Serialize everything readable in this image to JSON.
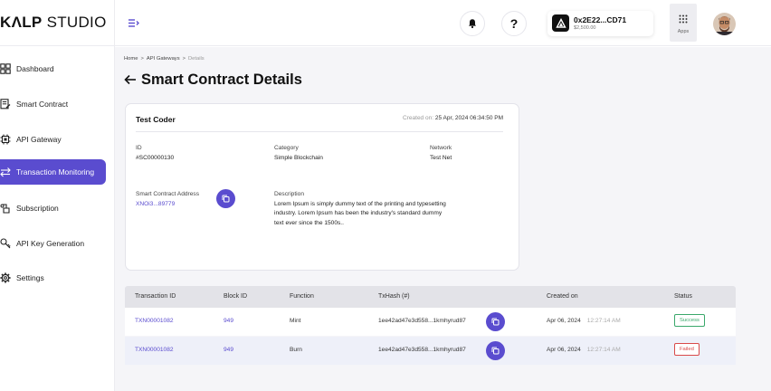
{
  "header": {
    "logo_bold": "KΛLP",
    "logo_light": " STUDIO",
    "wallet": {
      "address": "0x2E22...CD71",
      "balance": "$2,500.00"
    },
    "apps_label": "Apps",
    "help_label": "?"
  },
  "sidebar": {
    "items": [
      {
        "label": "Dashboard",
        "icon": "dashboard-icon",
        "active": false
      },
      {
        "label": "Smart Contract",
        "icon": "contract-icon",
        "active": false
      },
      {
        "label": "API Gateway",
        "icon": "chip-icon",
        "active": false
      },
      {
        "label": "Transaction Monitoring",
        "icon": "transfer-icon",
        "active": true
      },
      {
        "label": "Subscription",
        "icon": "subscription-icon",
        "active": false
      },
      {
        "label": "API Key Generation",
        "icon": "key-icon",
        "active": false
      },
      {
        "label": "Settings",
        "icon": "gear-icon",
        "active": false
      }
    ]
  },
  "breadcrumb": {
    "home": "Home",
    "sep1": ">",
    "parent": "API Gateways",
    "sep2": ">",
    "current": "Details"
  },
  "page_title": "Smart Contract Details",
  "details": {
    "title": "Test Coder",
    "created_label": "Created on:",
    "created_value": "25 Apr, 2024 06:34:50 PM",
    "id_label": "ID",
    "id_value": "#SC00000130",
    "category_label": "Category",
    "category_value": "Simple Blockchain",
    "network_label": "Network",
    "network_value": "Test Net",
    "address_label": "Smart Contract Address",
    "address_value": "XNOi3...89779",
    "description_label": "Description",
    "description_value": "Lorem Ipsum is simply dummy text of the printing and typesetting industry. Lorem Ipsum has been the industry's standard dummy text ever since the 1500s.."
  },
  "table": {
    "headers": [
      "Transaction ID",
      "Block ID",
      "Function",
      "TxHash (#)",
      "Created on",
      "Status"
    ],
    "rows": [
      {
        "tx_id": "TXN00001082",
        "block_id": "949",
        "function": "Mint",
        "tx_hash": "1ee42ad47e3d558...1kmhyrud87",
        "date": "Apr 06, 2024",
        "time": "12:27:14 AM",
        "status": "Success"
      },
      {
        "tx_id": "TXN00001082",
        "block_id": "949",
        "function": "Burn",
        "tx_hash": "1ee42ad47e3d558...1kmhyrud87",
        "date": "Apr 06, 2024",
        "time": "12:27:14 AM",
        "status": "Failed"
      }
    ]
  },
  "colors": {
    "accent": "#5a4ccf",
    "success": "#3aa86b",
    "failed": "#d94a4a"
  }
}
